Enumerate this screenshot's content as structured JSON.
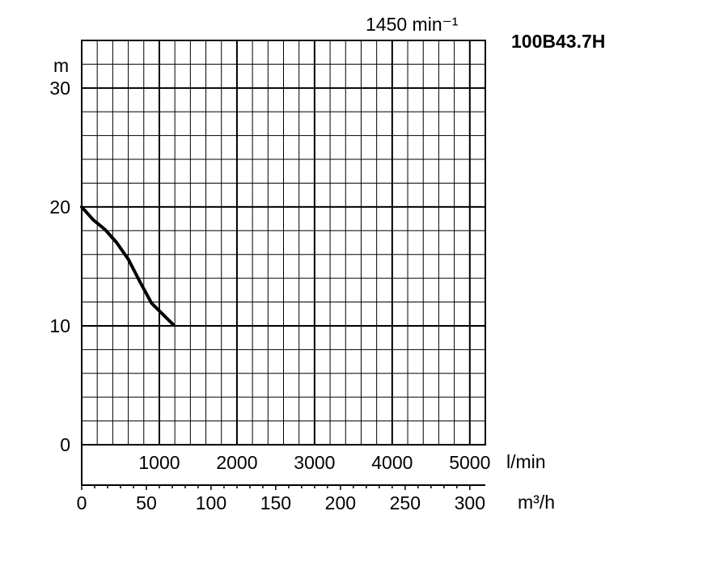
{
  "chart_data": {
    "type": "line",
    "title": "100B43.7H",
    "speed_label": "1450 min⁻¹",
    "y_unit": "m",
    "x_unit_primary": "l/min",
    "x_unit_secondary": "m³/h",
    "ylim": [
      0,
      34
    ],
    "xlim_lpm": [
      0,
      5200
    ],
    "xlim_m3h": [
      0,
      312
    ],
    "y_ticks": [
      0,
      10,
      20,
      30
    ],
    "x_ticks_lpm": [
      1000,
      2000,
      3000,
      4000,
      5000
    ],
    "x_ticks_m3h": [
      0,
      50,
      100,
      150,
      200,
      250,
      300
    ],
    "grid": true,
    "series": [
      {
        "x_lpm": [
          0,
          150,
          300,
          450,
          600,
          750,
          900,
          1180
        ],
        "y": [
          20,
          18.9,
          18.1,
          17.0,
          15.6,
          13.7,
          11.9,
          10.1
        ]
      }
    ]
  }
}
